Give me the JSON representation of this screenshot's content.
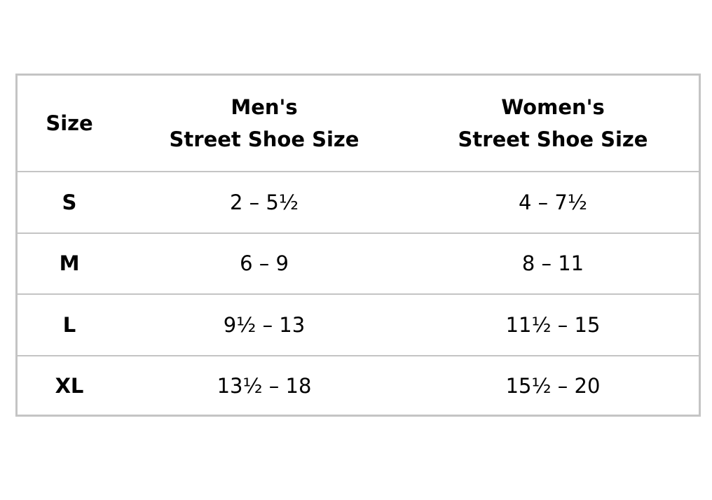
{
  "table": {
    "columns": [
      {
        "lines": [
          "Size"
        ]
      },
      {
        "lines": [
          "Men's",
          "Street Shoe Size"
        ]
      },
      {
        "lines": [
          "Women's",
          "Street Shoe Size"
        ]
      }
    ],
    "rows": [
      [
        "S",
        "2 – 5½",
        "4 – 7½"
      ],
      [
        "M",
        "6 – 9",
        "8 – 11"
      ],
      [
        "L",
        "9½ – 13",
        "11½ – 15"
      ],
      [
        "XL",
        "13½ – 18",
        "15½ – 20"
      ]
    ]
  }
}
